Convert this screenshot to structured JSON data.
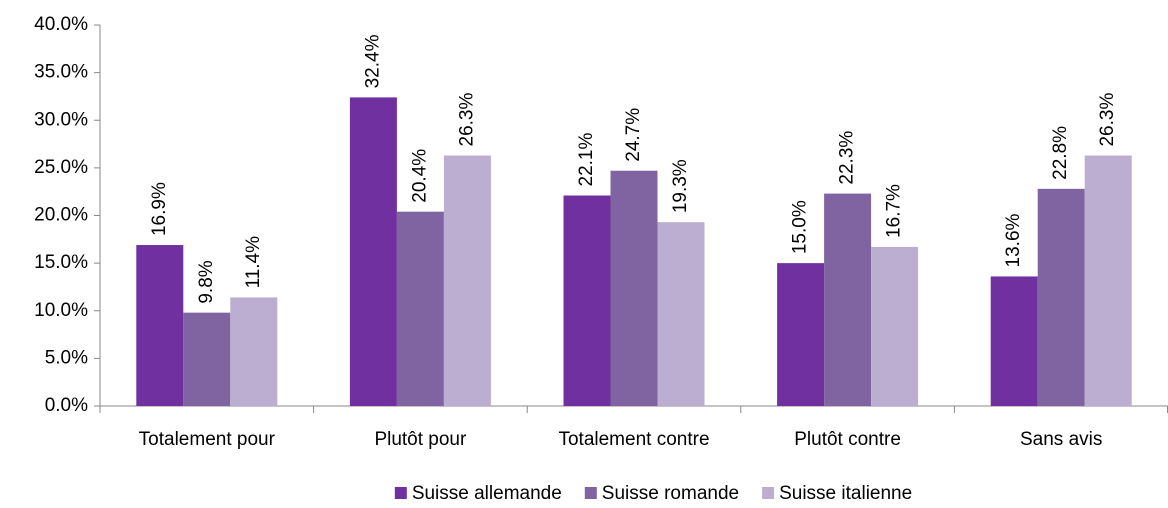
{
  "chart_data": {
    "type": "bar",
    "categories": [
      "Totalement pour",
      "Plutôt pour",
      "Totalement contre",
      "Plutôt contre",
      "Sans avis"
    ],
    "series": [
      {
        "name": "Suisse allemande",
        "color": "#7030a0",
        "values": [
          16.9,
          32.4,
          22.1,
          15.0,
          13.6
        ],
        "value_labels": [
          "16.9%",
          "32.4%",
          "22.1%",
          "15.0%",
          "13.6%"
        ]
      },
      {
        "name": "Suisse romande",
        "color": "#8064a2",
        "values": [
          9.8,
          20.4,
          24.7,
          22.3,
          22.8
        ],
        "value_labels": [
          "9.8%",
          "20.4%",
          "24.7%",
          "22.3%",
          "22.8%"
        ]
      },
      {
        "name": "Suisse italienne",
        "color": "#bcaed0",
        "values": [
          11.4,
          26.3,
          19.3,
          16.7,
          26.3
        ],
        "value_labels": [
          "11.4%",
          "26.3%",
          "19.3%",
          "16.7%",
          "26.3%"
        ]
      }
    ],
    "ylim": [
      0,
      40
    ],
    "yticks": [
      {
        "value": 0,
        "label": "0.0%"
      },
      {
        "value": 5,
        "label": "5.0%"
      },
      {
        "value": 10,
        "label": "10.0%"
      },
      {
        "value": 15,
        "label": "15.0%"
      },
      {
        "value": 20,
        "label": "20.0%"
      },
      {
        "value": 25,
        "label": "25.0%"
      },
      {
        "value": 30,
        "label": "30.0%"
      },
      {
        "value": 35,
        "label": "35.0%"
      },
      {
        "value": 40,
        "label": "40.0%"
      }
    ],
    "grid": false,
    "legend": "bottom"
  }
}
